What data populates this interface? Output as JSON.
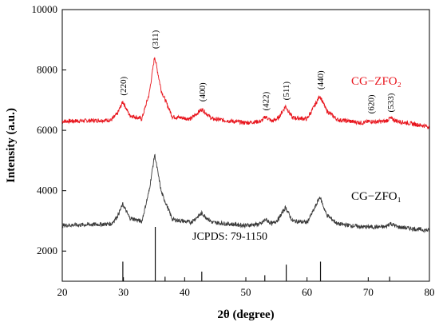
{
  "chart_data": {
    "type": "line",
    "xlabel": "2θ (degree)",
    "ylabel": "Intensity (a.u.)",
    "xlim": [
      20,
      80
    ],
    "ylim": [
      1000,
      10000
    ],
    "x_ticks": [
      20,
      30,
      40,
      50,
      60,
      70,
      80
    ],
    "y_ticks": [
      2000,
      4000,
      6000,
      8000,
      10000
    ],
    "x_tick_labels": [
      "20",
      "30",
      "40",
      "50",
      "60",
      "70",
      "80"
    ],
    "y_tick_labels": [
      "2000",
      "4000",
      "6000",
      "8000",
      "10000"
    ],
    "grid": false,
    "series": [
      {
        "name": "CG−ZFO₂",
        "color": "#e8141c",
        "baseline": 6300,
        "x": [
          20,
          28,
          29,
          29.9,
          31,
          33,
          34.2,
          35.1,
          36.2,
          38,
          41,
          42.8,
          44.5,
          50,
          52.5,
          53.2,
          54.3,
          55.3,
          56.5,
          57.6,
          60,
          61.2,
          62.1,
          63.2,
          65,
          69,
          70.4,
          71.2,
          72.8,
          73.6,
          74.8,
          80
        ],
        "y": [
          6300,
          6340,
          6550,
          6950,
          6500,
          6380,
          7200,
          8450,
          7300,
          6450,
          6380,
          6700,
          6380,
          6250,
          6300,
          6450,
          6300,
          6400,
          6800,
          6420,
          6380,
          6800,
          7150,
          6650,
          6350,
          6250,
          6300,
          6280,
          6300,
          6400,
          6300,
          6120
        ]
      },
      {
        "name": "CG−ZFO₁",
        "color": "#3a3a3a",
        "baseline": 2850,
        "x": [
          20,
          28,
          29,
          29.9,
          31,
          33,
          34.2,
          35.1,
          36.2,
          38,
          41,
          42.8,
          44.5,
          50,
          52.5,
          53.2,
          54.3,
          55.3,
          56.5,
          57.6,
          60,
          61.2,
          62.1,
          63.2,
          65,
          69,
          72.8,
          73.6,
          74.8,
          80
        ],
        "y": [
          2850,
          2900,
          3150,
          3550,
          3100,
          2980,
          4000,
          5200,
          3950,
          3050,
          2950,
          3250,
          2950,
          2850,
          2900,
          3050,
          2900,
          3050,
          3450,
          3000,
          2950,
          3400,
          3800,
          3200,
          2900,
          2800,
          2800,
          2920,
          2800,
          2680
        ]
      }
    ],
    "peak_labels": [
      {
        "x": 29.9,
        "y": 7150,
        "text": "(220)"
      },
      {
        "x": 35.1,
        "y": 8700,
        "text": "(311)"
      },
      {
        "x": 42.8,
        "y": 6950,
        "text": "(400)"
      },
      {
        "x": 53.2,
        "y": 6650,
        "text": "(422)"
      },
      {
        "x": 56.5,
        "y": 7000,
        "text": "(511)"
      },
      {
        "x": 62.1,
        "y": 7350,
        "text": "(440)"
      },
      {
        "x": 70.4,
        "y": 6550,
        "text": "(620)"
      },
      {
        "x": 73.6,
        "y": 6600,
        "text": "(533)"
      }
    ],
    "reference": {
      "label": "JCPDS: 79-1150",
      "baseline": 1000,
      "lines": [
        {
          "x": 29.9,
          "top": 1650
        },
        {
          "x": 35.2,
          "top": 2800
        },
        {
          "x": 36.8,
          "top": 1150
        },
        {
          "x": 42.8,
          "top": 1320
        },
        {
          "x": 53.1,
          "top": 1200
        },
        {
          "x": 56.6,
          "top": 1550
        },
        {
          "x": 62.2,
          "top": 1650
        },
        {
          "x": 73.5,
          "top": 1150
        }
      ]
    }
  }
}
